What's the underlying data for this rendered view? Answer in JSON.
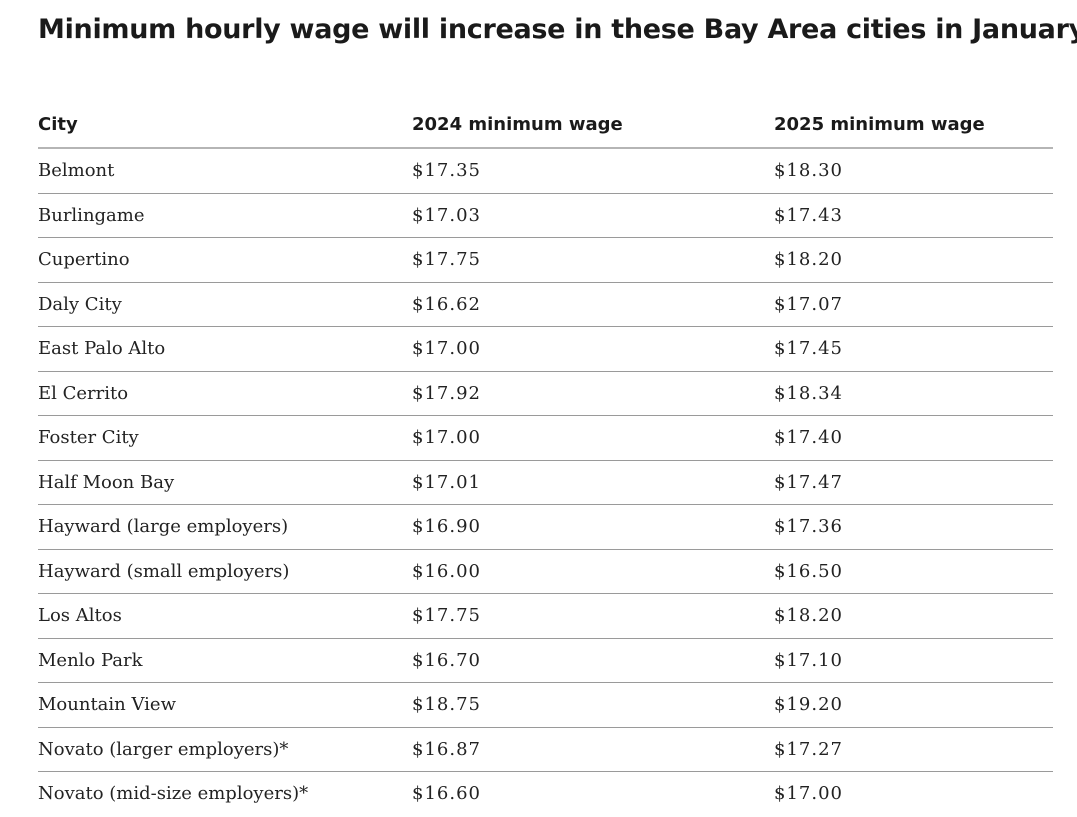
{
  "title": "Minimum hourly wage will increase in these Bay Area cities in January",
  "chart_data": {
    "type": "table",
    "title": "Minimum hourly wage will increase in these Bay Area cities in January",
    "columns": [
      "City",
      "2024 minimum wage",
      "2025 minimum wage"
    ],
    "rows": [
      [
        "Belmont",
        "$17.35",
        "$18.30"
      ],
      [
        "Burlingame",
        "$17.03",
        "$17.43"
      ],
      [
        "Cupertino",
        "$17.75",
        "$18.20"
      ],
      [
        "Daly City",
        "$16.62",
        "$17.07"
      ],
      [
        "East Palo Alto",
        "$17.00",
        "$17.45"
      ],
      [
        "El Cerrito",
        "$17.92",
        "$18.34"
      ],
      [
        "Foster City",
        "$17.00",
        "$17.40"
      ],
      [
        "Half Moon Bay",
        "$17.01",
        "$17.47"
      ],
      [
        "Hayward (large employers)",
        "$16.90",
        "$17.36"
      ],
      [
        "Hayward (small employers)",
        "$16.00",
        "$16.50"
      ],
      [
        "Los Altos",
        "$17.75",
        "$18.20"
      ],
      [
        "Menlo Park",
        "$16.70",
        "$17.10"
      ],
      [
        "Mountain View",
        "$18.75",
        "$19.20"
      ],
      [
        "Novato (larger employers)*",
        "$16.87",
        "$17.27"
      ],
      [
        "Novato (mid-size employers)*",
        "$16.60",
        "$17.00"
      ]
    ]
  }
}
